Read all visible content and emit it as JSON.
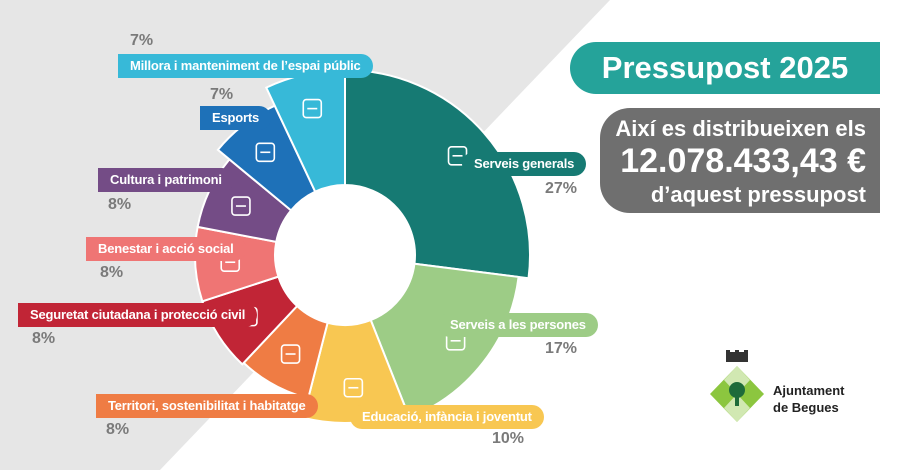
{
  "title": "Pressupost 2025",
  "info": {
    "line1": "Així es distribueixen els",
    "amount": "12.078.433,43 €",
    "line3": "d’aquest pressupost"
  },
  "logo": {
    "line1": "Ajuntament",
    "line2": "de Begues",
    "icon": "begues-coat-of-arms-icon"
  },
  "colors": {
    "title_bg": "#25a39a",
    "info_bg": "#6f6f6f",
    "bg_triangle": "#e6e6e6"
  },
  "chart_data": {
    "type": "pie",
    "variant": "donut",
    "slices": [
      {
        "label": "Serveis generals",
        "value": 27,
        "percent_label": "27%",
        "color": "#167a73",
        "icon": "document-icon"
      },
      {
        "label": "Serveis a les persones",
        "value": 17,
        "percent_label": "17%",
        "color": "#9dcc86",
        "icon": "people-icon"
      },
      {
        "label": "Educació, infància i joventut",
        "value": 10,
        "percent_label": "10%",
        "color": "#f8c752",
        "icon": "books-icon"
      },
      {
        "label": "Territori, sostenibilitat i habitatge",
        "value": 8,
        "percent_label": "8%",
        "color": "#ef7c44",
        "icon": "house-tree-icon"
      },
      {
        "label": "Seguretat ciutadana i protecció civil",
        "value": 8,
        "percent_label": "8%",
        "color": "#c12536",
        "icon": "siren-icon"
      },
      {
        "label": "Benestar i acció social",
        "value": 8,
        "percent_label": "8%",
        "color": "#ef7574",
        "icon": "helping-hands-icon"
      },
      {
        "label": "Cultura i patrimoni",
        "value": 8,
        "percent_label": "8%",
        "color": "#744c86",
        "icon": "museum-icon"
      },
      {
        "label": "Esports",
        "value": 7,
        "percent_label": "7%",
        "color": "#1e71b8",
        "icon": "running-shoe-icon"
      },
      {
        "label": "Millora i manteniment de l’espai públic",
        "value": 7,
        "percent_label": "7%",
        "color": "#37b9d8",
        "icon": "park-bench-icon"
      }
    ]
  }
}
